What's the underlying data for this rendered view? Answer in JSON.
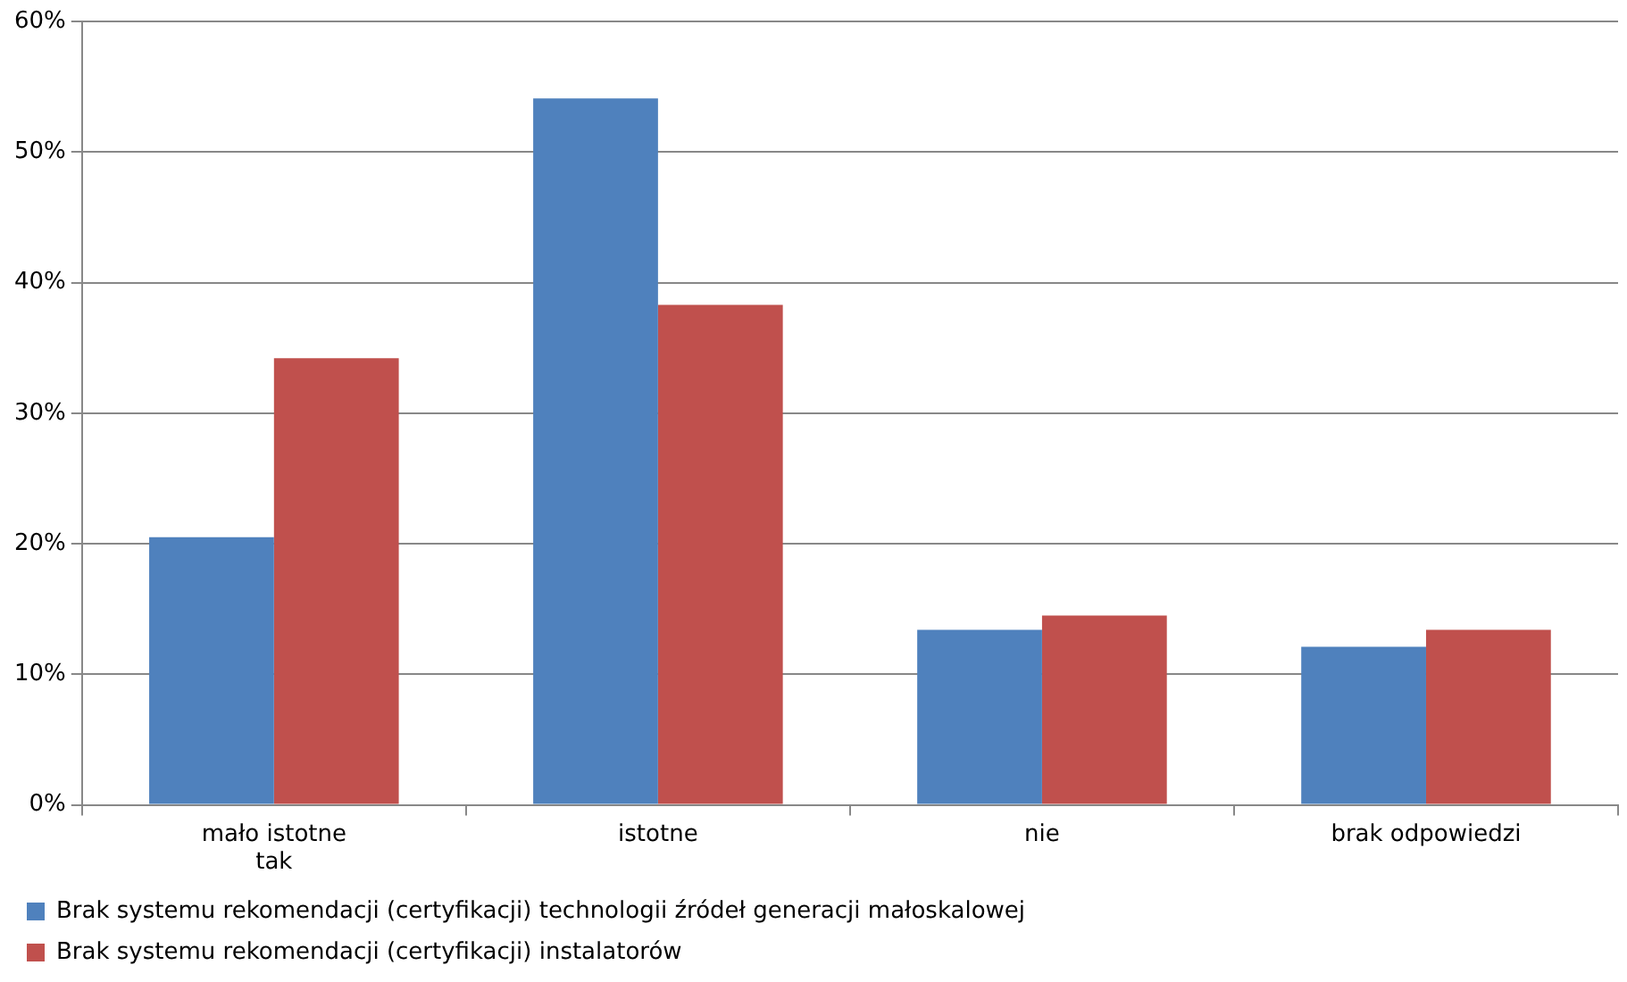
{
  "chart_data": {
    "type": "bar",
    "categories": [
      "mało istotne tak",
      "istotne",
      "nie",
      "brak odpowiedzi"
    ],
    "series": [
      {
        "name": "Brak systemu rekomendacji (certyfikacji) technologii źródeł generacji małoskalowej",
        "color": "#4f81bd",
        "values": [
          20.5,
          54.1,
          13.4,
          12.1
        ]
      },
      {
        "name": "Brak systemu rekomendacji (certyfikacji) instalatorów",
        "color": "#c0504d",
        "values": [
          34.2,
          38.3,
          14.5,
          13.4
        ]
      }
    ],
    "ylim": [
      0,
      60
    ],
    "yticks": [
      {
        "value": 0,
        "label": "0%"
      },
      {
        "value": 10,
        "label": "10%"
      },
      {
        "value": 20,
        "label": "20%"
      },
      {
        "value": 30,
        "label": "30%"
      },
      {
        "value": 40,
        "label": "40%"
      },
      {
        "value": 50,
        "label": "50%"
      },
      {
        "value": 60,
        "label": "60%"
      }
    ],
    "grid": "y",
    "legend": "bottom"
  }
}
